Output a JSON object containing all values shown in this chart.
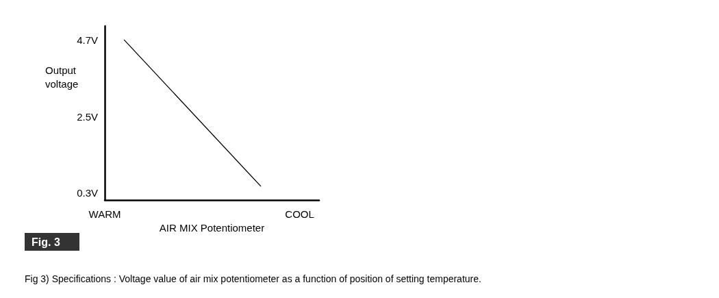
{
  "chart_data": {
    "type": "line",
    "xlabel": "AIR MIX Potentiometer",
    "ylabel": "Output voltage",
    "categories": [
      "WARM",
      null,
      null,
      null,
      null,
      null,
      null,
      null,
      null,
      null,
      "COOL",
      null
    ],
    "series": [
      {
        "color": "#000000",
        "values": [
          null,
          4.7,
          null,
          null,
          null,
          null,
          null,
          null,
          0.5,
          null,
          null,
          null
        ]
      }
    ],
    "ylim": [
      0.1,
      5.1
    ],
    "yticks": [
      {
        "value": 0.3,
        "label": "0.3V"
      },
      {
        "value": 2.5,
        "label": "2.5V"
      },
      {
        "value": 4.7,
        "label": "4.7V"
      }
    ],
    "grid": false,
    "marker": "none",
    "line_style": "solid",
    "annotations": [
      "Fig. 3",
      "Fig 3) Specifications : Voltage value of air mix potentiometer as a function of position of setting temperature."
    ]
  }
}
